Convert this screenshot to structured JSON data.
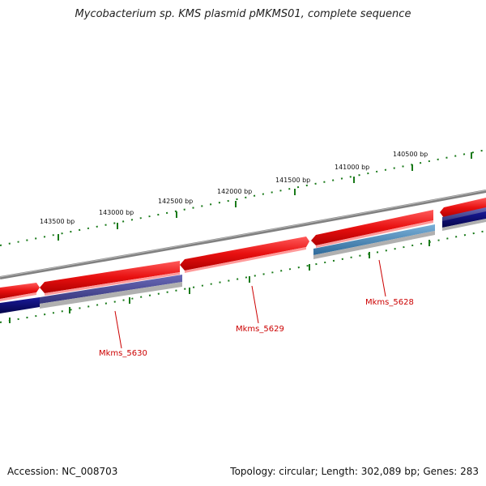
{
  "title": "Mycobacterium sp. KMS plasmid pMKMS01, complete sequence",
  "footer": {
    "accession": "Accession: NC_008703",
    "summary": "Topology: circular; Length: 302,089 bp; Genes: 283"
  },
  "scale_labels": [
    "143500 bp",
    "143000 bp",
    "142500 bp",
    "142000 bp",
    "141500 bp",
    "141000 bp",
    "140500 bp"
  ],
  "gene_labels": [
    "Mkms_5630",
    "Mkms_5629",
    "Mkms_5628"
  ],
  "colors": {
    "forward_cds": "#e81010",
    "reverse_cds_dark": "#0a0a7a",
    "reverse_cds_purple": "#4a4a9a",
    "reverse_cds_blue": "#4a86b8",
    "backbone": "#808080",
    "tick": "#1a7a1a",
    "label": "#cc0000"
  }
}
